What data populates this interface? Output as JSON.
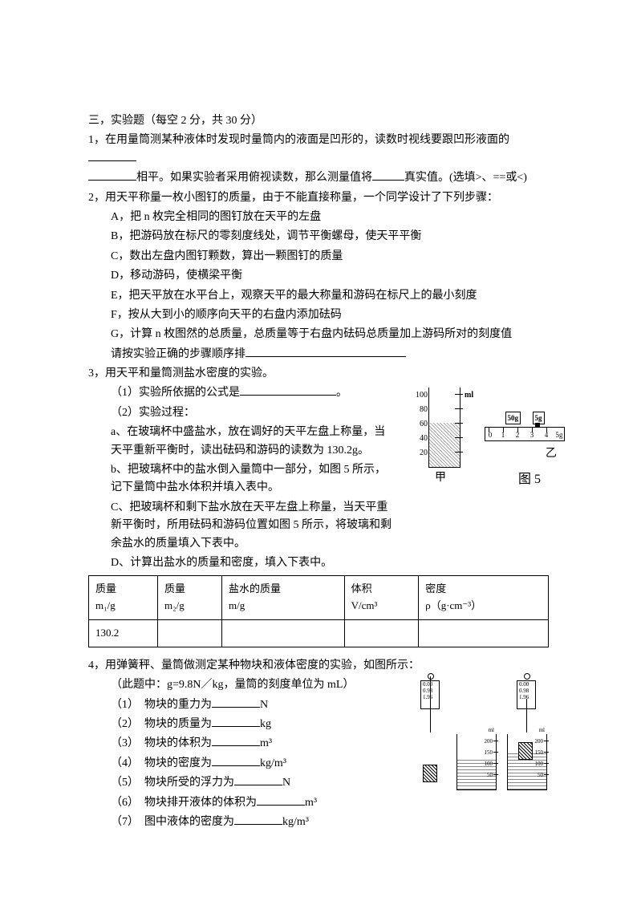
{
  "title": "三，实验题（每空 2 分，共 30 分）",
  "q1": {
    "line1": "1，在用量筒测某种液体时发现时量筒内的液面是凹形的，读数时视线要跟凹形液面的",
    "line2_prefix": "相平。如果实验者采用俯视读数，那么测量值将",
    "line2_mid": "真实值。(选填>、==或<)"
  },
  "q2": {
    "intro": "2，用天平称量一枚小图钉的质量，由于不能直接称量，一个同学设计了下列步骤：",
    "A": "A，把 n 枚完全相同的图钉放在天平的左盘",
    "B": "B，把游码放在标尺的零刻度线处，调节平衡螺母，使天平平衡",
    "C": "C，数出左盘内图钉颗数，算出一颗图钉的质量",
    "D": "D，移动游码，使横梁平衡",
    "E": "E，把天平放在水平台上，观察天平的最大称量和游码在标尺上的最小刻度",
    "F": "F，按从大到小的顺序向天平的右盘内添加砝码",
    "G": "G，计算 n 枚图然的总质量，总质量等于右盘内砝码总质量加上游码所对的刻度值",
    "order": "请按实验正确的步骤顺序排"
  },
  "q3": {
    "intro": "3，用天平和量筒测盐水密度的实验。",
    "p1": "（1）实验所依据的公式是",
    "p2": "（2）实验过程：",
    "a": "a、在玻璃杯中盛盐水，放在调好的天平左盘上称量，当天平重新平衡时，读出砝码和游码的读数为 130.2g。",
    "b": "b、把玻璃杯中的盐水倒入量筒中一部分，如图 5 所示，记下量筒中盐水体积并填入表中。",
    "c": "C、把玻璃杯和剩下盐水放在天平左盘上称量，当天平重新平衡时，所用砝码和游码位置如图 5 所示，将玻璃和剩余盐水的质量填入下表中。",
    "d": "D、计算出盐水的质量和密度，填入下表中。",
    "table": {
      "headers": [
        "质量",
        "质量",
        "盐水的质量",
        "体积",
        "密度"
      ],
      "subheaders": [
        "m₁/g",
        "m₂/g",
        "m/g",
        "V/cm³",
        "ρ（g·cm⁻³）"
      ],
      "row1": [
        "130.2",
        "",
        "",
        "",
        ""
      ]
    },
    "fig": {
      "cylinder_ticks": [
        100,
        80,
        60,
        40,
        20
      ],
      "ml": "ml",
      "weight_50": "50g",
      "weight_5": "5g",
      "ruler_ticks": [
        "0",
        "1",
        "2",
        "3",
        "4",
        "5g"
      ],
      "jia": "甲",
      "yi": "乙",
      "caption": "图 5"
    }
  },
  "q4": {
    "intro": "4，用弹簧秤、量筒做测定某种物块和液体密度的实验，如图所示：",
    "note": "（此题中：g=9.8N／kg，量筒的刻度单位为 mL）",
    "items": [
      "（1）　物块的重力为",
      "（2）　物块的质量为",
      "（3）　物块的体积为",
      "（4）　物块的密度为",
      "（5）　物块所受的浮力为",
      "（6）　物块排开液体的体积为",
      "（7）　图中液体的密度为"
    ],
    "units": [
      "N",
      "kg",
      "m³",
      "kg/m³",
      "N",
      "m³",
      "kg/m³"
    ],
    "fig": {
      "spring_marks": [
        "0.00",
        "0.98",
        "1.96"
      ],
      "beaker_marks": [
        200,
        150,
        100,
        50
      ],
      "ml": "ml"
    }
  }
}
